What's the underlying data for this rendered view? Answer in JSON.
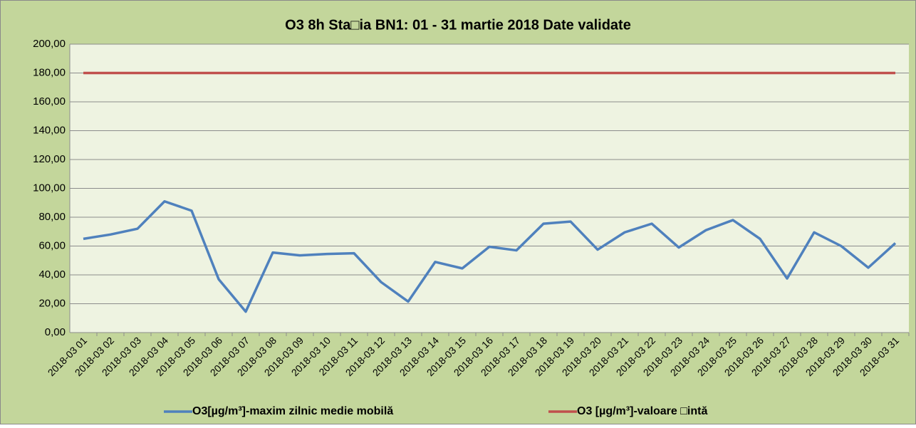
{
  "chart_data": {
    "type": "line",
    "title": "O3 8h Sta□ia BN1: 01 - 31 martie 2018 Date validate",
    "categories": [
      "2018-03 01",
      "2018-03 02",
      "2018-03 03",
      "2018-03 04",
      "2018-03 05",
      "2018-03 06",
      "2018-03 07",
      "2018-03 08",
      "2018-03 09",
      "2018-03 10",
      "2018-03 11",
      "2018-03 12",
      "2018-03 13",
      "2018-03 14",
      "2018-03 15",
      "2018-03 16",
      "2018-03 17",
      "2018-03 18",
      "2018-03 19",
      "2018-03 20",
      "2018-03 21",
      "2018-03 22",
      "2018-03 23",
      "2018-03 24",
      "2018-03 25",
      "2018-03 26",
      "2018-03 27",
      "2018-03 28",
      "2018-03 29",
      "2018-03 30",
      "2018-03 31"
    ],
    "series": [
      {
        "name": "O3[µg/m³]-maxim zilnic medie mobilă",
        "color": "#4f81bd",
        "values": [
          65,
          68,
          72,
          91,
          84.5,
          37,
          14.5,
          55.5,
          53.5,
          54.5,
          55,
          35,
          21.5,
          49,
          44.5,
          59.5,
          57,
          75.5,
          77,
          57.5,
          69.5,
          75.5,
          59,
          71,
          78,
          65,
          37.5,
          69.5,
          60,
          45,
          62
        ]
      },
      {
        "name": "O3 [µg/m³]-valoare □intă",
        "color": "#c0504d",
        "values": [
          180,
          180,
          180,
          180,
          180,
          180,
          180,
          180,
          180,
          180,
          180,
          180,
          180,
          180,
          180,
          180,
          180,
          180,
          180,
          180,
          180,
          180,
          180,
          180,
          180,
          180,
          180,
          180,
          180,
          180,
          180
        ]
      }
    ],
    "ylim": [
      0,
      200
    ],
    "yticks": [
      {
        "value": 0,
        "label": "0,00"
      },
      {
        "value": 20,
        "label": "20,00"
      },
      {
        "value": 40,
        "label": "40,00"
      },
      {
        "value": 60,
        "label": "60,00"
      },
      {
        "value": 80,
        "label": "80,00"
      },
      {
        "value": 100,
        "label": "100,00"
      },
      {
        "value": 120,
        "label": "120,00"
      },
      {
        "value": 140,
        "label": "140,00"
      },
      {
        "value": 160,
        "label": "160,00"
      },
      {
        "value": 180,
        "label": "180,00"
      },
      {
        "value": 200,
        "label": "200,00"
      }
    ],
    "grid": true,
    "legend": "bottom"
  }
}
